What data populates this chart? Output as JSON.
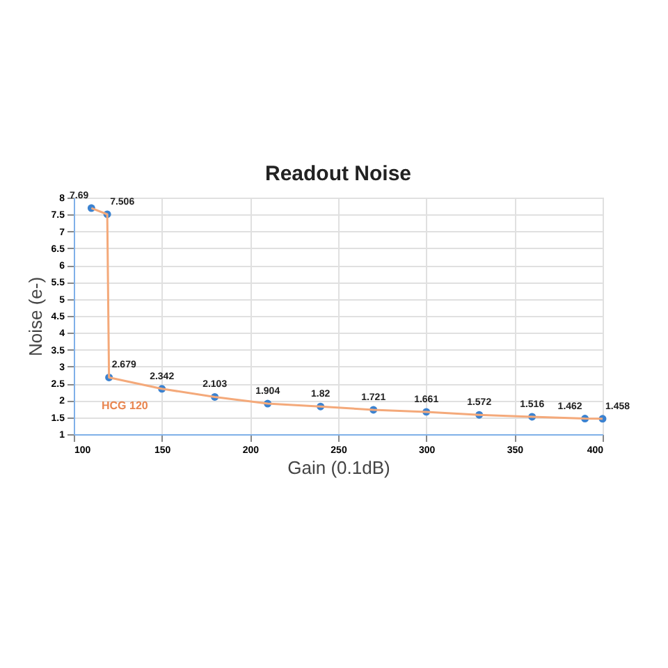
{
  "chart_data": {
    "type": "line",
    "title": "Readout Noise",
    "xlabel": "Gain (0.1dB)",
    "ylabel": "Noise (e-)",
    "x": [
      110,
      119,
      120,
      150,
      180,
      210,
      240,
      270,
      300,
      330,
      360,
      390,
      400
    ],
    "series": [
      {
        "type": "scatter",
        "color": "#3b82d0",
        "marker": "circle",
        "values": [
          7.69,
          7.506,
          2.679,
          2.342,
          2.103,
          1.904,
          1.82,
          1.721,
          1.661,
          1.572,
          1.516,
          1.462,
          1.458
        ],
        "value_labels": [
          "7.69",
          "7.506",
          "2.679",
          "2.342",
          "2.103",
          "1.904",
          "1.82",
          "1.721",
          "1.661",
          "1.572",
          "1.516",
          "1.462",
          "1.458"
        ]
      },
      {
        "color": "#f4a97a",
        "marker": "none",
        "values": [
          7.69,
          7.506,
          2.679,
          2.342,
          2.103,
          1.904,
          1.82,
          1.721,
          1.661,
          1.572,
          1.516,
          1.462,
          1.458
        ]
      }
    ],
    "annotations": [
      "HCG 120"
    ],
    "xlim": [
      100,
      400
    ],
    "xticks": [
      100,
      150,
      200,
      250,
      300,
      350,
      400
    ],
    "ylim": [
      1,
      8
    ],
    "yticks": [
      1,
      1.5,
      2,
      2.5,
      3,
      3.5,
      4,
      4.5,
      5,
      5.5,
      6,
      6.5,
      7,
      7.5,
      8
    ],
    "grid": true
  }
}
